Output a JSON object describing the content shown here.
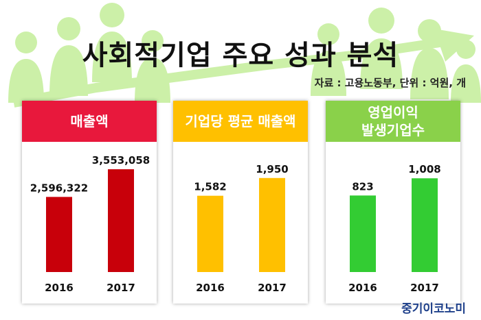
{
  "title": "사회적기업 주요 성과 분석",
  "source_note": "자료 : 고용노동부, 단위 : 억원, 개",
  "brand": "중기이코노미",
  "colors": {
    "background_art": "#ccf0a8",
    "revenue": "#c8000a",
    "revenue_header": "#e8183c",
    "avg_revenue": "#ffc000",
    "avg_revenue_header": "#ffc000",
    "operating_profit": "#33cc33",
    "operating_profit_header": "#8ad14a"
  },
  "chart_data": [
    {
      "type": "bar",
      "title": "매출액",
      "categories": [
        "2016",
        "2017"
      ],
      "values": [
        2596322,
        3553058
      ],
      "value_labels": [
        "2,596,322",
        "3,553,058"
      ],
      "ylim": [
        0,
        4500000
      ]
    },
    {
      "type": "bar",
      "title": "기업당 평균 매출액",
      "categories": [
        "2016",
        "2017"
      ],
      "values": [
        1582,
        1950
      ],
      "value_labels": [
        "1,582",
        "1,950"
      ],
      "ylim": [
        0,
        2700
      ]
    },
    {
      "type": "bar",
      "title": "영업이익\n발생기업수",
      "categories": [
        "2016",
        "2017"
      ],
      "values": [
        823,
        1008
      ],
      "value_labels": [
        "823",
        "1,008"
      ],
      "ylim": [
        0,
        1400
      ]
    }
  ]
}
